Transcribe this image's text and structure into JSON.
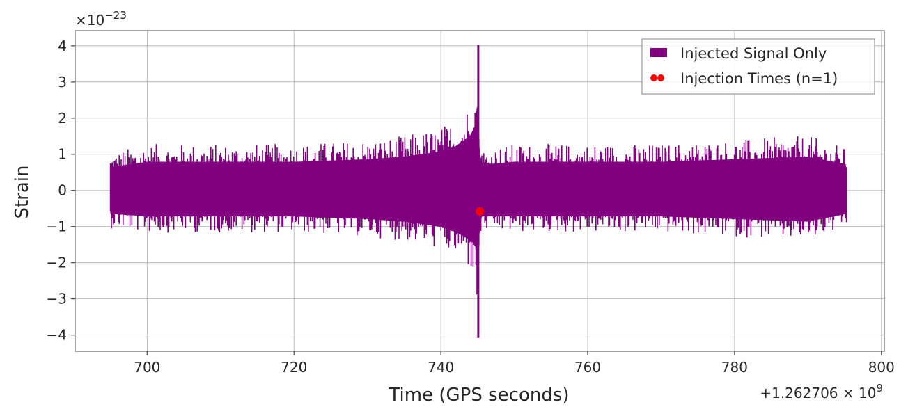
{
  "chart_data": {
    "type": "line",
    "xlabel": "Time (GPS seconds)",
    "ylabel": "Strain",
    "x_offset_label": "+1.262706",
    "x_offset_exp": "9",
    "y_scale_label": "×10",
    "y_scale_exp": "−23",
    "xlim": [
      690.2,
      800.4
    ],
    "ylim": [
      -4.45,
      4.42
    ],
    "x_ticks": [
      700,
      720,
      740,
      760,
      780,
      800
    ],
    "y_ticks": [
      -4,
      -3,
      -2,
      -1,
      0,
      1,
      2,
      3,
      4
    ],
    "y_tick_labels": [
      "−4",
      "−3",
      "−2",
      "−1",
      "0",
      "1",
      "2",
      "3",
      "4"
    ],
    "grid": true,
    "legend_position": "top-right",
    "colors": {
      "signal": "#800080",
      "injection": "#ff0000"
    },
    "series": [
      {
        "name": "Injected Signal Only",
        "kind": "filled-band",
        "x_range": [
          695.0,
          795.3
        ],
        "envelope": {
          "x": [
            695.0,
            700,
            710,
            720,
            730,
            735,
            740,
            742,
            744,
            744.8,
            745.0,
            745.2,
            745.5,
            746,
            750,
            760,
            770,
            780,
            790,
            795.3
          ],
          "upper": [
            0.9,
            1.1,
            1.1,
            1.1,
            1.2,
            1.3,
            1.5,
            1.7,
            2.1,
            2.6,
            4.0,
            1.8,
            1.1,
            1.0,
            1.1,
            1.1,
            1.1,
            1.2,
            1.3,
            1.0
          ],
          "lower": [
            -0.9,
            -1.0,
            -1.0,
            -1.0,
            -1.1,
            -1.2,
            -1.4,
            -1.6,
            -1.9,
            -2.2,
            -4.05,
            -1.8,
            -1.0,
            -1.0,
            -1.0,
            -1.0,
            -1.0,
            -1.1,
            -1.2,
            -0.9
          ]
        }
      },
      {
        "name": "Injection Times (n=1)",
        "kind": "scatter",
        "points": [
          {
            "x": 745.3,
            "y": -0.58
          }
        ]
      }
    ]
  }
}
